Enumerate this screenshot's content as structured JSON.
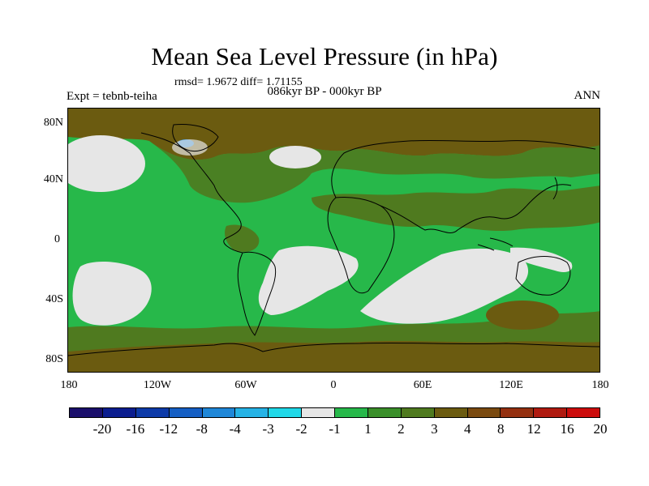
{
  "title": "Mean Sea Level Pressure (in hPa)",
  "stats": "rmsd= 1.9672 diff= 1.71155",
  "experiment": "Expt = tebnb-teiha",
  "period": "086kyr BP - 000kyr BP",
  "season": "ANN",
  "y_ticks": [
    "80N",
    "40N",
    "0",
    "40S",
    "80S"
  ],
  "x_ticks": [
    "180",
    "120W",
    "60W",
    "0",
    "60E",
    "120E",
    "180"
  ],
  "colorbar": {
    "colors": [
      "#1a0f6b",
      "#0b1d8f",
      "#0d3aa8",
      "#155fc4",
      "#1f87d8",
      "#26b3e6",
      "#20d8e8",
      "#e6e6e6",
      "#27b84a",
      "#3a8f2a",
      "#4f7a1f",
      "#6b5b10",
      "#7a4a10",
      "#943010",
      "#b01a10",
      "#cc0c0c"
    ],
    "labels": [
      "-20",
      "-16",
      "-12",
      "-8",
      "-4",
      "-3",
      "-2",
      "-1",
      "1",
      "2",
      "3",
      "4",
      "8",
      "12",
      "16",
      "20"
    ]
  },
  "map_colors": {
    "ocean_green": "#27b84a",
    "olive": "#4f7a1f",
    "brown": "#6b5b10",
    "light_grey": "#e6e6e6",
    "blue": "#1f87d8"
  }
}
